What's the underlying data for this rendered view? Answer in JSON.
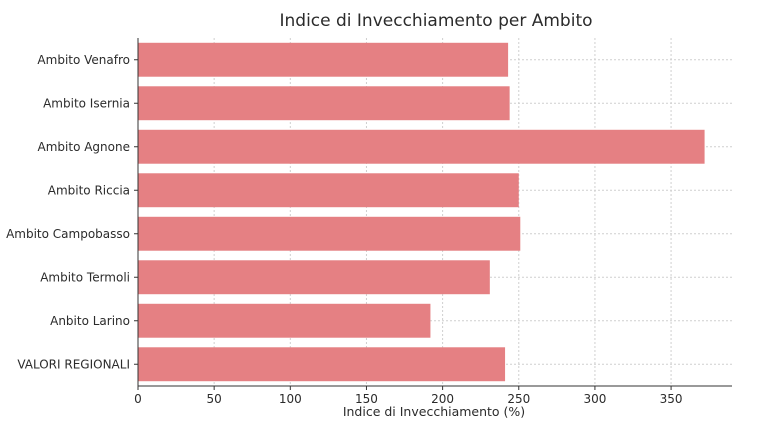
{
  "chart_data": {
    "type": "bar",
    "orientation": "horizontal",
    "title": "Indice di Invecchiamento per Ambito",
    "xlabel": "Indice di Invecchiamento (%)",
    "ylabel": "",
    "categories": [
      "Ambito Venafro",
      "Ambito Isernia",
      "Ambito Agnone",
      "Ambito Riccia",
      "Ambito Campobasso",
      "Ambito Termoli",
      "Anbito Larino",
      "VALORI REGIONALI"
    ],
    "values": [
      243,
      244,
      372,
      250,
      251,
      231,
      192,
      241
    ],
    "xlim": [
      0,
      390
    ],
    "xticks": [
      0,
      50,
      100,
      150,
      200,
      250,
      300,
      350
    ],
    "grid": true,
    "bar_color": "#e58083"
  }
}
